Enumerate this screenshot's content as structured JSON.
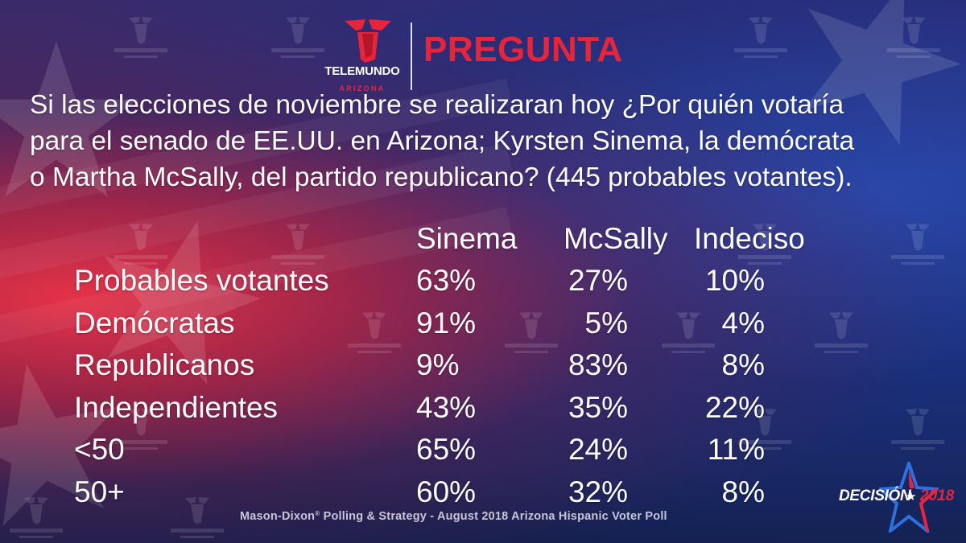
{
  "header": {
    "brand_name": "TELEMUNDO",
    "brand_sub": "ARIZONA",
    "title": "PREGUNTA",
    "brand_color": "#e8243b",
    "logo_icon": "telemundo-t-icon"
  },
  "question": {
    "lines": [
      "Si las elecciones de noviembre se realizaran hoy ¿Por quién votaría",
      "para el senado de EE.UU. en Arizona; Kyrsten Sinema, la demócrata",
      "o Martha McSally, del partido republicano? (445 probables votantes)."
    ]
  },
  "chart_data": {
    "type": "table",
    "title": "PREGUNTA",
    "columns": [
      "Sinema",
      "McSally",
      "Indeciso"
    ],
    "rows": [
      {
        "label": "Probables votantes",
        "values": [
          "63%",
          "27%",
          "10%"
        ]
      },
      {
        "label": "Demócratas",
        "values": [
          "91%",
          "5%",
          "4%"
        ]
      },
      {
        "label": "Republicanos",
        "values": [
          "9%",
          "83%",
          "8%"
        ]
      },
      {
        "label": "Independientes",
        "values": [
          "43%",
          "35%",
          "22%"
        ]
      },
      {
        "label": "<50",
        "values": [
          "65%",
          "24%",
          "11%"
        ]
      },
      {
        "label": "50+",
        "values": [
          "60%",
          "32%",
          "8%"
        ]
      }
    ]
  },
  "source": {
    "text_before": "Mason-Dixon",
    "reg": "®",
    "text_after": " Polling & Strategy - August 2018 Arizona Hispanic Voter Poll"
  },
  "badge": {
    "word": "DECISIÓN",
    "separator": "★",
    "year": "2018",
    "icon": "star-icon"
  }
}
